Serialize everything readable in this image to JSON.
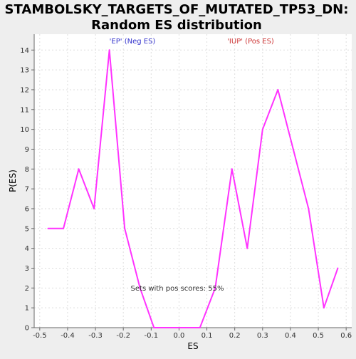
{
  "chart_data": {
    "type": "line",
    "title_line1": "STAMBOLSKY_TARGETS_OF_MUTATED_TP53_DN:",
    "title_line2": "Random ES distribution",
    "xlabel": "ES",
    "ylabel": "P(ES)",
    "xlim": [
      -0.52,
      0.62
    ],
    "ylim": [
      0,
      14.8
    ],
    "grid": true,
    "x_ticks": [
      -0.5,
      -0.4,
      -0.3,
      -0.2,
      -0.1,
      0.0,
      0.1,
      0.2,
      0.3,
      0.4,
      0.5,
      0.6
    ],
    "x_tick_labels": [
      "-0.5",
      "-0.4",
      "-0.3",
      "-0.2",
      "-0.1",
      "0.0",
      "0.1",
      "0.2",
      "0.3",
      "0.4",
      "0.5",
      "0.6"
    ],
    "y_ticks": [
      0,
      1,
      2,
      3,
      4,
      5,
      6,
      7,
      8,
      9,
      10,
      11,
      12,
      13,
      14
    ],
    "y_tick_labels": [
      "0",
      "1",
      "2",
      "3",
      "4",
      "5",
      "6",
      "7",
      "8",
      "9",
      "10",
      "11",
      "12",
      "13",
      "14"
    ],
    "series": [
      {
        "color": "#ff33ff",
        "x": [
          -0.47,
          -0.415,
          -0.36,
          -0.305,
          -0.25,
          -0.195,
          -0.14,
          -0.09,
          -0.035,
          0.02,
          0.075,
          0.13,
          0.19,
          0.245,
          0.3,
          0.355,
          0.41,
          0.465,
          0.52,
          0.57
        ],
        "y": [
          5,
          5,
          8,
          6,
          14,
          5,
          2,
          0,
          0,
          0,
          0,
          2,
          8,
          4,
          10,
          12,
          9,
          6,
          1,
          3
        ]
      }
    ],
    "annotations": {
      "neg_label": "'EP' (Neg ES)",
      "neg_color": "#3333cc",
      "pos_label": "'IUP' (Pos ES)",
      "pos_color": "#cc3333",
      "pos_score_text": "Sets with pos scores: 55%"
    }
  }
}
